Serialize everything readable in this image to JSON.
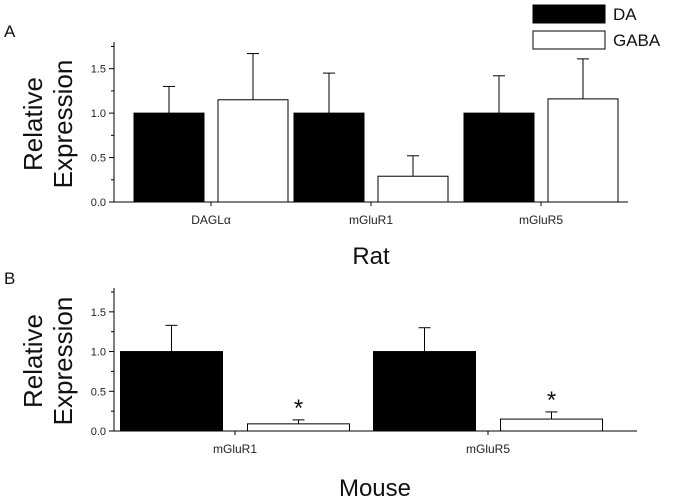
{
  "legend": [
    {
      "label": "DA",
      "color": "#000000"
    },
    {
      "label": "GABA",
      "color": "#ffffff"
    }
  ],
  "chart_data": [
    {
      "type": "bar",
      "panel_label": "A",
      "categories": [
        "DAGLα",
        "mGluR1",
        "mGluR5"
      ],
      "series": [
        {
          "name": "DA",
          "values": [
            1.0,
            1.0,
            1.0
          ],
          "errors": [
            0.3,
            0.45,
            0.42
          ],
          "color": "#000000"
        },
        {
          "name": "GABA",
          "values": [
            1.15,
            0.29,
            1.16
          ],
          "errors": [
            0.52,
            0.23,
            0.45
          ],
          "color": "#ffffff"
        }
      ],
      "xlabel": "Rat",
      "ylabel": "Relative Expression",
      "ylim": [
        0,
        1.8
      ],
      "yticks": [
        "0.0",
        "0.5",
        "1.0",
        "1.5"
      ],
      "annotations": []
    },
    {
      "type": "bar",
      "panel_label": "B",
      "categories": [
        "mGluR1",
        "mGluR5"
      ],
      "series": [
        {
          "name": "DA",
          "values": [
            1.0,
            1.0
          ],
          "errors": [
            0.33,
            0.3
          ],
          "color": "#000000"
        },
        {
          "name": "GABA",
          "values": [
            0.09,
            0.15
          ],
          "errors": [
            0.05,
            0.09
          ],
          "color": "#ffffff"
        }
      ],
      "xlabel": "Mouse",
      "ylabel": "Relative Expression",
      "ylim": [
        0,
        1.8
      ],
      "yticks": [
        "0.0",
        "0.5",
        "1.0",
        "1.5"
      ],
      "annotations": [
        {
          "category_index": 0,
          "series_index": 1,
          "text": "*"
        },
        {
          "category_index": 1,
          "series_index": 1,
          "text": "*"
        }
      ]
    }
  ]
}
